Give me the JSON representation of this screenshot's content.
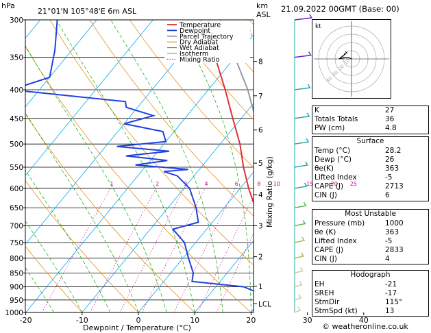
{
  "header": {
    "hpa_label": "hPa",
    "location": "21°01'N  105°48'E  6m  ASL",
    "km_label": "km",
    "asl_label": "ASL",
    "datetime": "21.09.2022  00GMT  (Base: 00)"
  },
  "chart_data": {
    "type": "skew-t",
    "xlabel": "Dewpoint / Temperature (°C)",
    "ylabel_right": "Mixing Ratio (g/kg)",
    "ylabel_left": "hPa",
    "x_ticks": [
      "-30",
      "-20",
      "-10",
      "0",
      "10",
      "20",
      "30",
      "40"
    ],
    "x_tick_values": [
      -30,
      -20,
      -10,
      0,
      10,
      20,
      30,
      40
    ],
    "pressure_ticks": [
      300,
      350,
      400,
      450,
      500,
      550,
      600,
      650,
      700,
      750,
      800,
      850,
      900,
      950,
      1000
    ],
    "pressure_labels": [
      "300",
      "350",
      "400",
      "450",
      "500",
      "550",
      "600",
      "650",
      "700",
      "750",
      "800",
      "850",
      "900",
      "950",
      "1000"
    ],
    "km_ticks": [
      {
        "label": "8",
        "p": 356
      },
      {
        "label": "7",
        "p": 410
      },
      {
        "label": "6",
        "p": 472
      },
      {
        "label": "5",
        "p": 541
      },
      {
        "label": "4",
        "p": 616
      },
      {
        "label": "3",
        "p": 700
      },
      {
        "label": "2",
        "p": 795
      },
      {
        "label": "1",
        "p": 898
      },
      {
        "label": "LCL",
        "p": 965
      }
    ],
    "mixing_ratio_labels": [
      "1",
      "2",
      "3",
      "4",
      "6",
      "8",
      "10",
      "15",
      "20",
      "25"
    ],
    "mixing_ratio_values": [
      1,
      2,
      3,
      4,
      6,
      8,
      10,
      15,
      20,
      25
    ],
    "legend": [
      "Temperature",
      "Dewpoint",
      "Parcel Trajectory",
      "Dry Adiabat",
      "Wet Adiabat",
      "Isotherm",
      "Mixing Ratio"
    ],
    "colors": {
      "temperature": "#e03030",
      "dewpoint": "#2040e0",
      "parcel": "#999999",
      "dry_adiabat": "#e08000",
      "wet_adiabat": "#00aa00",
      "isotherm": "#00aaee",
      "mixing_ratio": "#cc0088"
    },
    "temperature": [
      {
        "p": 1000,
        "t": 28.2
      },
      {
        "p": 975,
        "t": 26.5
      },
      {
        "p": 950,
        "t": 24.5
      },
      {
        "p": 925,
        "t": 22.8
      },
      {
        "p": 900,
        "t": 21.2
      },
      {
        "p": 850,
        "t": 18.5
      },
      {
        "p": 800,
        "t": 15.5
      },
      {
        "p": 750,
        "t": 12.5
      },
      {
        "p": 700,
        "t": 9.0
      },
      {
        "p": 650,
        "t": 5.5
      },
      {
        "p": 600,
        "t": 1.5
      },
      {
        "p": 550,
        "t": -2.5
      },
      {
        "p": 500,
        "t": -6.5
      },
      {
        "p": 450,
        "t": -11.5
      },
      {
        "p": 400,
        "t": -17.0
      },
      {
        "p": 350,
        "t": -23.5
      },
      {
        "p": 300,
        "t": -31.5
      }
    ],
    "dewpoint": [
      {
        "p": 1000,
        "t": 26.0
      },
      {
        "p": 975,
        "t": 25.0
      },
      {
        "p": 950,
        "t": 23.5
      },
      {
        "p": 930,
        "t": 19.5
      },
      {
        "p": 900,
        "t": 15.0
      },
      {
        "p": 880,
        "t": 5.0
      },
      {
        "p": 850,
        "t": 4.0
      },
      {
        "p": 800,
        "t": 1.0
      },
      {
        "p": 750,
        "t": -2.0
      },
      {
        "p": 710,
        "t": -6.0
      },
      {
        "p": 690,
        "t": -2.5
      },
      {
        "p": 650,
        "t": -5.0
      },
      {
        "p": 600,
        "t": -9.0
      },
      {
        "p": 570,
        "t": -13.0
      },
      {
        "p": 560,
        "t": -16.0
      },
      {
        "p": 555,
        "t": -12.0
      },
      {
        "p": 545,
        "t": -22.0
      },
      {
        "p": 535,
        "t": -17.0
      },
      {
        "p": 525,
        "t": -25.0
      },
      {
        "p": 515,
        "t": -18.0
      },
      {
        "p": 505,
        "t": -28.0
      },
      {
        "p": 495,
        "t": -20.0
      },
      {
        "p": 475,
        "t": -22.0
      },
      {
        "p": 460,
        "t": -30.0
      },
      {
        "p": 445,
        "t": -26.0
      },
      {
        "p": 430,
        "t": -32.0
      },
      {
        "p": 420,
        "t": -33.0
      },
      {
        "p": 400,
        "t": -55.0
      },
      {
        "p": 380,
        "t": -50.0
      },
      {
        "p": 340,
        "t": -53.0
      },
      {
        "p": 300,
        "t": -57.0
      }
    ],
    "parcel": [
      {
        "p": 1000,
        "t": 28.2
      },
      {
        "p": 965,
        "t": 25.2
      },
      {
        "p": 900,
        "t": 22.0
      },
      {
        "p": 850,
        "t": 20.0
      },
      {
        "p": 800,
        "t": 17.8
      },
      {
        "p": 700,
        "t": 12.5
      },
      {
        "p": 600,
        "t": 6.0
      },
      {
        "p": 500,
        "t": -2.5
      },
      {
        "p": 400,
        "t": -13.0
      },
      {
        "p": 350,
        "t": -20.0
      },
      {
        "p": 300,
        "t": -28.0
      }
    ],
    "wind_barbs_p": [
      1000,
      950,
      900,
      850,
      800,
      750,
      700,
      650,
      600,
      550,
      500,
      450,
      400,
      350,
      300
    ]
  },
  "hodograph": {
    "label": "kt",
    "rings": [
      "10",
      "20",
      "30",
      "40"
    ]
  },
  "indices": [
    {
      "label": "K",
      "value": "27"
    },
    {
      "label": "Totals Totals",
      "value": "36"
    },
    {
      "label": "PW (cm)",
      "value": "4.8"
    }
  ],
  "surface": {
    "title": "Surface",
    "rows": [
      {
        "label": "Temp (°C)",
        "value": "28.2"
      },
      {
        "label": "Dewp (°C)",
        "value": "26"
      },
      {
        "label": "θe(K)",
        "value": "363"
      },
      {
        "label": "Lifted Index",
        "value": "-5"
      },
      {
        "label": "CAPE (J)",
        "value": "2713"
      },
      {
        "label": "CIN (J)",
        "value": "6"
      }
    ]
  },
  "most_unstable": {
    "title": "Most Unstable",
    "rows": [
      {
        "label": "Pressure (mb)",
        "value": "1000"
      },
      {
        "label": "θe (K)",
        "value": "363"
      },
      {
        "label": "Lifted Index",
        "value": "-5"
      },
      {
        "label": "CAPE (J)",
        "value": "2833"
      },
      {
        "label": "CIN (J)",
        "value": "4"
      }
    ]
  },
  "hodograph_params": {
    "title": "Hodograph",
    "rows": [
      {
        "label": "EH",
        "value": "-21"
      },
      {
        "label": "SREH",
        "value": "-17"
      },
      {
        "label": "StmDir",
        "value": "115°"
      },
      {
        "label": "StmSpd (kt)",
        "value": "13"
      }
    ]
  },
  "copyright": "© weatheronline.co.uk"
}
